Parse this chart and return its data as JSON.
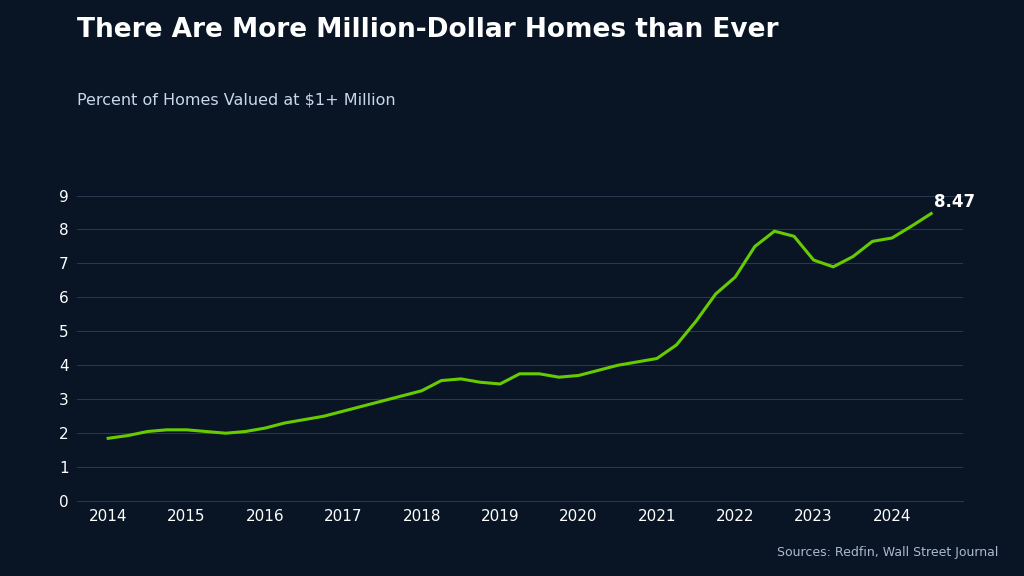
{
  "title": "There Are More Million-Dollar Homes than Ever",
  "subtitle": "Percent of Homes Valued at $1+ Million",
  "source": "Sources: Redfin, Wall Street Journal",
  "line_color": "#66cc00",
  "bg_color": "#091525",
  "grid_color": "#2a3a55",
  "text_color": "#ffffff",
  "subtitle_color": "#c8d8e8",
  "source_color": "#aabbcc",
  "blue_bar_top": "#1a6abf",
  "blue_bar_bottom": "#0d4a8a",
  "ylim": [
    0,
    9.5
  ],
  "yticks": [
    0,
    1,
    2,
    3,
    4,
    5,
    6,
    7,
    8,
    9
  ],
  "annotation_value": "8.47",
  "x": [
    2014.0,
    2014.25,
    2014.5,
    2014.75,
    2015.0,
    2015.25,
    2015.5,
    2015.75,
    2016.0,
    2016.25,
    2016.5,
    2016.75,
    2017.0,
    2017.25,
    2017.5,
    2017.75,
    2018.0,
    2018.25,
    2018.5,
    2018.75,
    2019.0,
    2019.25,
    2019.5,
    2019.75,
    2020.0,
    2020.25,
    2020.5,
    2020.75,
    2021.0,
    2021.25,
    2021.5,
    2021.75,
    2022.0,
    2022.25,
    2022.5,
    2022.75,
    2023.0,
    2023.25,
    2023.5,
    2023.75,
    2024.0,
    2024.25,
    2024.5
  ],
  "y": [
    1.85,
    1.93,
    2.05,
    2.1,
    2.1,
    2.05,
    2.0,
    2.05,
    2.15,
    2.3,
    2.4,
    2.5,
    2.65,
    2.8,
    2.95,
    3.1,
    3.25,
    3.55,
    3.6,
    3.5,
    3.45,
    3.75,
    3.75,
    3.65,
    3.7,
    3.85,
    4.0,
    4.1,
    4.2,
    4.6,
    5.3,
    6.1,
    6.6,
    7.5,
    7.95,
    7.8,
    7.1,
    6.9,
    7.2,
    7.65,
    7.75,
    8.1,
    8.47
  ],
  "xtick_labels": [
    "2014",
    "2015",
    "2016",
    "2017",
    "2018",
    "2019",
    "2020",
    "2021",
    "2022",
    "2023",
    "2024"
  ],
  "xtick_positions": [
    2014,
    2015,
    2016,
    2017,
    2018,
    2019,
    2020,
    2021,
    2022,
    2023,
    2024
  ],
  "xlim_left": 2013.6,
  "xlim_right": 2024.9
}
